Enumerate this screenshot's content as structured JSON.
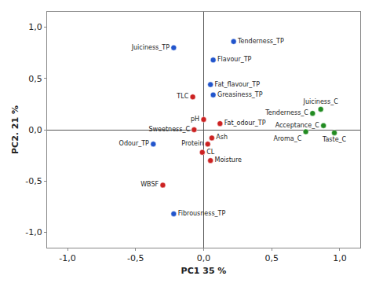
{
  "chart_data": {
    "type": "scatter",
    "xlabel": "PC1 35 %",
    "ylabel": "PC2. 21 %",
    "labels": [
      "Tenderness_TP",
      "Juiciness_TP",
      "Flavour_TP",
      "Fat_flavour_TP",
      "Greasiness_TP",
      "Odour_TP",
      "Fibrousness_TP",
      "TLC",
      "pH",
      "Fat_odour_TP",
      "Sweetness_C",
      "Ash",
      "Protein",
      "CL",
      "Moisture",
      "WBSF",
      "Juiciness_C",
      "Tenderness_C",
      "Acceptance_C",
      "Aroma_C",
      "Taste_C"
    ],
    "x": [
      0.22,
      -0.22,
      0.07,
      0.05,
      0.07,
      -0.37,
      -0.22,
      -0.08,
      0.0,
      0.12,
      -0.07,
      0.06,
      0.03,
      -0.01,
      0.05,
      -0.3,
      0.86,
      0.8,
      0.88,
      0.75,
      0.96
    ],
    "values": [
      0.86,
      0.8,
      0.68,
      0.44,
      0.34,
      -0.14,
      -0.82,
      0.32,
      0.1,
      0.06,
      0.0,
      -0.08,
      -0.14,
      -0.22,
      -0.3,
      -0.54,
      0.2,
      0.16,
      0.04,
      -0.02,
      -0.03
    ],
    "colors": [
      "#2255cc",
      "#2255cc",
      "#2255cc",
      "#2255cc",
      "#2255cc",
      "#2255cc",
      "#2255cc",
      "#cc2222",
      "#cc2222",
      "#cc2222",
      "#cc2222",
      "#cc2222",
      "#cc2222",
      "#cc2222",
      "#cc2222",
      "#cc2222",
      "#228b22",
      "#228b22",
      "#228b22",
      "#228b22",
      "#228b22"
    ],
    "xlim": [
      -1.15,
      1.15
    ],
    "ylim": [
      -1.15,
      1.15
    ],
    "xticks": [
      {
        "value": -1.0,
        "label": "-1,0"
      },
      {
        "value": -0.5,
        "label": "-0,5"
      },
      {
        "value": 0.0,
        "label": "0,0"
      },
      {
        "value": 0.5,
        "label": "0,5"
      },
      {
        "value": 1.0,
        "label": "1,0"
      }
    ],
    "yticks": [
      {
        "value": -1.0,
        "label": "-1,0"
      },
      {
        "value": -0.5,
        "label": "-0,5"
      },
      {
        "value": 0.0,
        "label": "0,0"
      },
      {
        "value": 0.5,
        "label": "0,5"
      },
      {
        "value": 1.0,
        "label": "1,0"
      }
    ],
    "grid": false
  }
}
